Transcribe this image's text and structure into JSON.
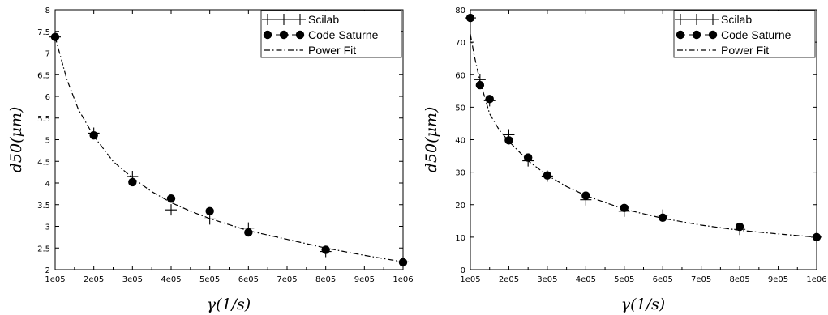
{
  "chart_data": [
    {
      "type": "scatter",
      "xlabel": "γ(1/s)",
      "ylabel": "d50(μm)",
      "xlim": [
        100000,
        1000000
      ],
      "ylim": [
        2,
        8
      ],
      "xticks": [
        100000,
        200000,
        300000,
        400000,
        500000,
        600000,
        700000,
        800000,
        900000,
        1000000
      ],
      "xtick_labels": [
        "1e05",
        "2e05",
        "3e05",
        "4e05",
        "5e05",
        "6e05",
        "7e05",
        "8e05",
        "9e05",
        "1e06"
      ],
      "yticks": [
        2,
        2.5,
        3,
        3.5,
        4,
        4.5,
        5,
        5.5,
        6,
        6.5,
        7,
        7.5,
        8
      ],
      "ytick_labels": [
        "2",
        "2.5",
        "3",
        "3.5",
        "4",
        "4.5",
        "5",
        "5.5",
        "6",
        "6.5",
        "7",
        "7.5",
        "8"
      ],
      "legend_position": "top-right",
      "grid": false,
      "series": [
        {
          "name": "Scilab",
          "marker": "plus",
          "color": "#000000",
          "x": [
            100000,
            200000,
            300000,
            400000,
            500000,
            600000,
            800000,
            1000000
          ],
          "y": [
            7.37,
            5.15,
            4.15,
            3.38,
            3.17,
            2.96,
            2.42,
            2.18
          ]
        },
        {
          "name": "Code Saturne",
          "marker": "dot",
          "color": "#000000",
          "x": [
            100000,
            200000,
            300000,
            400000,
            500000,
            600000,
            800000,
            1000000
          ],
          "y": [
            7.37,
            5.1,
            4.02,
            3.64,
            3.35,
            2.86,
            2.46,
            2.17
          ]
        },
        {
          "name": "Power Fit",
          "marker": "dashdot",
          "color": "#000000",
          "x": [
            100000,
            130000,
            160000,
            200000,
            250000,
            300000,
            350000,
            400000,
            450000,
            500000,
            550000,
            600000,
            700000,
            800000,
            900000,
            1000000
          ],
          "y": [
            7.37,
            6.4,
            5.7,
            5.08,
            4.5,
            4.12,
            3.8,
            3.55,
            3.35,
            3.18,
            3.04,
            2.9,
            2.7,
            2.5,
            2.33,
            2.18
          ]
        }
      ]
    },
    {
      "type": "scatter",
      "xlabel": "γ(1/s)",
      "ylabel": "d50(μm)",
      "xlim": [
        100000,
        1000000
      ],
      "ylim": [
        0,
        80
      ],
      "xticks": [
        100000,
        200000,
        300000,
        400000,
        500000,
        600000,
        700000,
        800000,
        900000,
        1000000
      ],
      "xtick_labels": [
        "1e05",
        "2e05",
        "3e05",
        "4e05",
        "5e05",
        "6e05",
        "7e05",
        "8e05",
        "9e05",
        "1e06"
      ],
      "yticks": [
        0,
        10,
        20,
        30,
        40,
        50,
        60,
        70,
        80
      ],
      "ytick_labels": [
        "0",
        "10",
        "20",
        "30",
        "40",
        "50",
        "60",
        "70",
        "80"
      ],
      "legend_position": "top-right",
      "grid": false,
      "series": [
        {
          "name": "Scilab",
          "marker": "plus",
          "color": "#000000",
          "x": [
            100000,
            125000,
            150000,
            200000,
            250000,
            300000,
            400000,
            500000,
            600000,
            800000,
            1000000
          ],
          "y": [
            77.5,
            58.5,
            52.0,
            41.5,
            33.5,
            28.8,
            21.5,
            18.0,
            16.8,
            12.4,
            10.0
          ]
        },
        {
          "name": "Code Saturne",
          "marker": "dot",
          "color": "#000000",
          "x": [
            100000,
            125000,
            150000,
            200000,
            250000,
            300000,
            400000,
            500000,
            600000,
            800000,
            1000000
          ],
          "y": [
            77.5,
            56.8,
            52.5,
            39.8,
            34.5,
            29.0,
            22.8,
            19.0,
            16.0,
            13.2,
            10.0
          ]
        },
        {
          "name": "Power Fit",
          "marker": "dashdot",
          "color": "#000000",
          "x": [
            100000,
            110000,
            125000,
            150000,
            175000,
            200000,
            250000,
            300000,
            350000,
            400000,
            500000,
            600000,
            700000,
            800000,
            900000,
            1000000
          ],
          "y": [
            72.5,
            66.0,
            58.0,
            48.0,
            43.0,
            39.5,
            33.5,
            29.0,
            25.6,
            22.8,
            18.6,
            15.8,
            13.7,
            12.1,
            11.0,
            10.0
          ]
        }
      ]
    }
  ]
}
